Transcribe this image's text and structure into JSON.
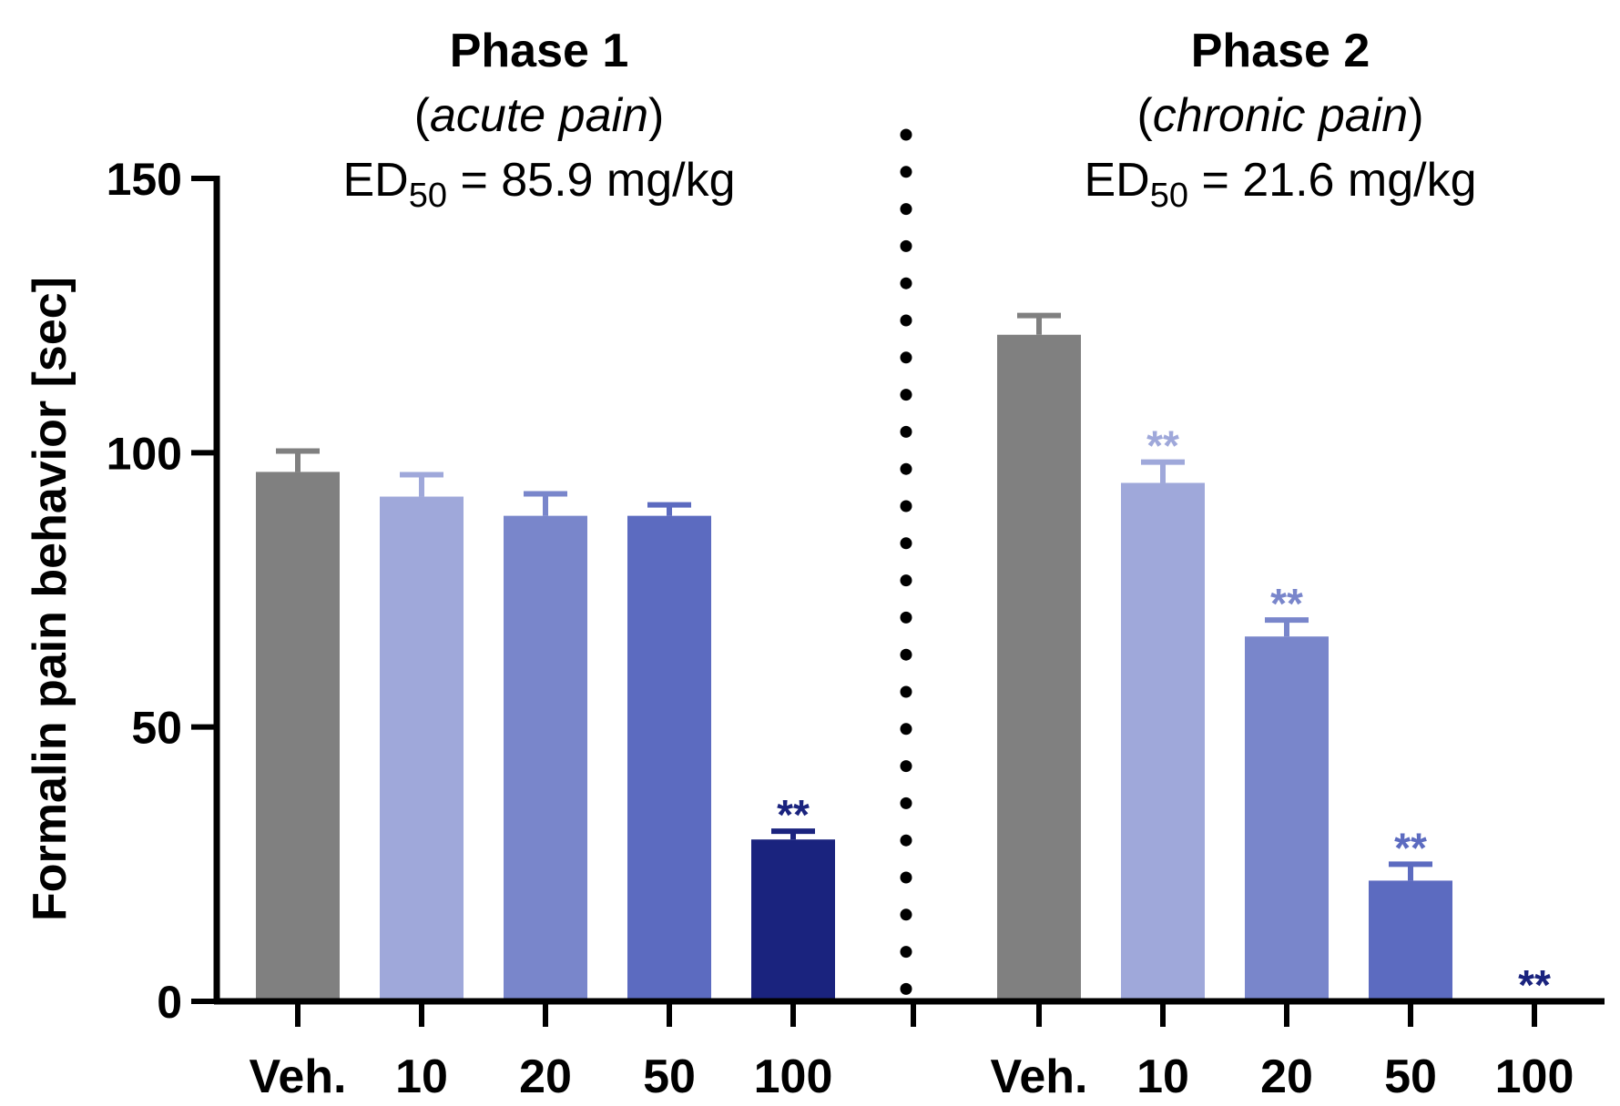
{
  "chart_data": {
    "type": "bar",
    "ylabel": "Formalin pain behavior [sec]",
    "ylim": [
      0,
      150
    ],
    "yticks": [
      0,
      50,
      100,
      150
    ],
    "colors": {
      "Veh.": "#808080",
      "10": "#9FA8DA",
      "20": "#7986CB",
      "50": "#5C6BC0",
      "100": "#1A237E"
    },
    "groups": [
      {
        "name": "Phase 1",
        "subtitle_open": "(",
        "subtitle_italic": "acute pain",
        "subtitle_close": ")",
        "ed50_prefix": "ED",
        "ed50_sub": "50",
        "ed50_suffix": " = 85.9 mg/kg",
        "categories": [
          "Veh.",
          "10",
          "20",
          "50",
          "100"
        ],
        "values": [
          96.5,
          92,
          88.5,
          88.5,
          29.5
        ],
        "errors": [
          3.8,
          4,
          4,
          2,
          1.5
        ],
        "significance": [
          "",
          "",
          "",
          "",
          "**"
        ]
      },
      {
        "name": "Phase 2",
        "subtitle_open": "(",
        "subtitle_italic": "chronic pain",
        "subtitle_close": ")",
        "ed50_prefix": "ED",
        "ed50_sub": "50",
        "ed50_suffix": " = 21.6 mg/kg",
        "categories": [
          "Veh.",
          "10",
          "20",
          "50",
          "100"
        ],
        "values": [
          121.5,
          94.5,
          66.5,
          22,
          0
        ],
        "errors": [
          3.5,
          3.8,
          3,
          3,
          0
        ],
        "significance": [
          "",
          "**",
          "**",
          "**",
          "**"
        ]
      }
    ]
  }
}
